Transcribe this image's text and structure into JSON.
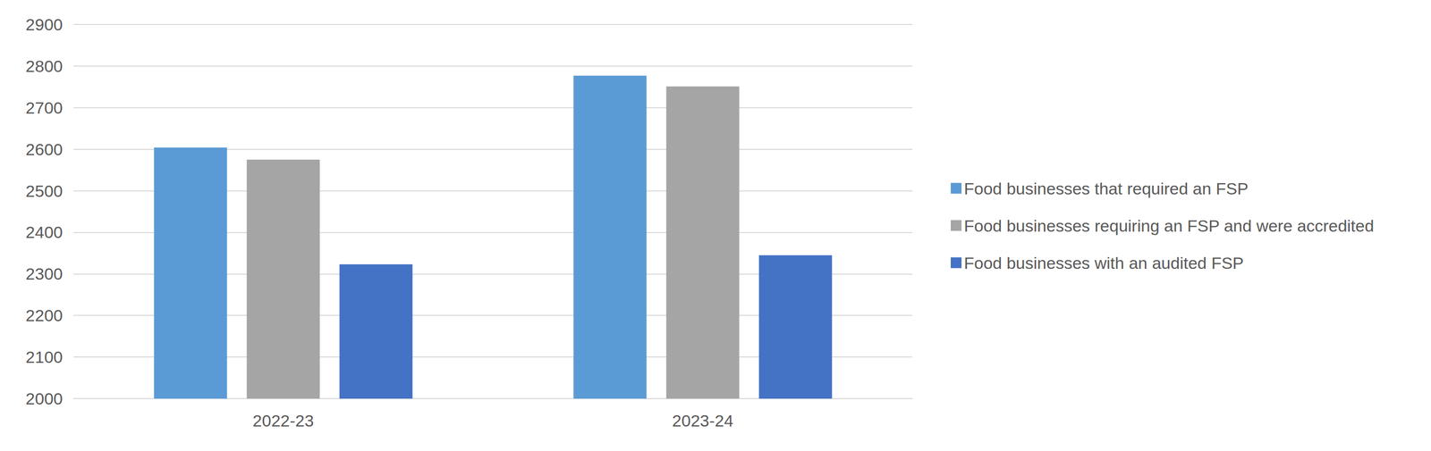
{
  "chart_data": {
    "type": "bar",
    "categories": [
      "2022-23",
      "2023-24"
    ],
    "series": [
      {
        "name": "Food businesses that required an FSP",
        "color": "#5b9bd5",
        "values": [
          2604,
          2777
        ]
      },
      {
        "name": "Food businesses requiring an FSP and were accredited",
        "color": "#a5a5a5",
        "values": [
          2575,
          2751
        ]
      },
      {
        "name": "Food businesses with an audited FSP",
        "color": "#4472c4",
        "values": [
          2323,
          2345
        ]
      }
    ],
    "ylim": [
      2000,
      2900
    ],
    "yticks": [
      2000,
      2100,
      2200,
      2300,
      2400,
      2500,
      2600,
      2700,
      2800,
      2900
    ],
    "grid": true,
    "legend": "right"
  }
}
